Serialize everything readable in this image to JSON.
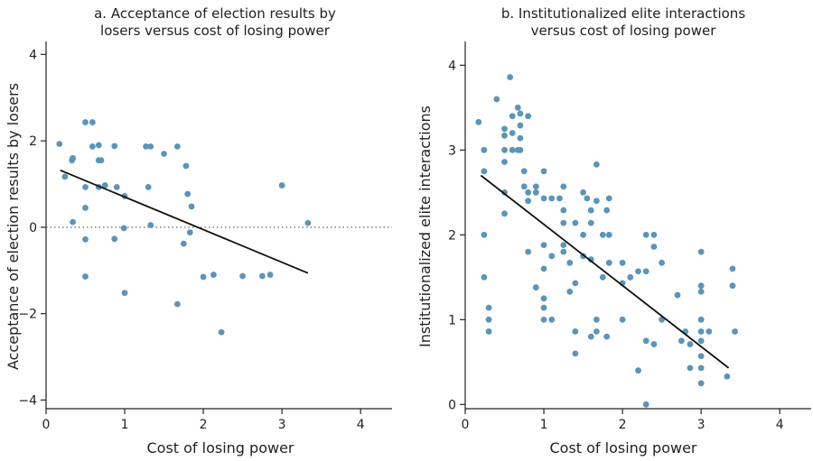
{
  "chart_data": [
    {
      "type": "scatter",
      "title_lines": [
        "a. Acceptance of election results by",
        "losers versus cost of losing power"
      ],
      "xlabel": "Cost of losing power",
      "ylabel": "Acceptance of election results by losers",
      "xlim": [
        0,
        4.4
      ],
      "ylim": [
        -4.2,
        4.3
      ],
      "xticks": [
        0,
        1,
        2,
        3,
        4
      ],
      "yticks": [
        -4,
        -2,
        0,
        2,
        4
      ],
      "ytick_labels": [
        "−4",
        "−2",
        "0",
        "2",
        "4"
      ],
      "reference_line": {
        "y": 0,
        "style": "dotted"
      },
      "fit_line": {
        "x": [
          0.18,
          3.33
        ],
        "y": [
          1.32,
          -1.06
        ]
      },
      "colors": {
        "points": "#5b95b8",
        "fit": "#111111"
      },
      "points": [
        [
          0.17,
          1.93
        ],
        [
          0.24,
          1.17
        ],
        [
          0.33,
          1.55
        ],
        [
          0.34,
          1.6
        ],
        [
          0.34,
          0.12
        ],
        [
          0.5,
          2.43
        ],
        [
          0.5,
          0.93
        ],
        [
          0.5,
          0.45
        ],
        [
          0.5,
          -0.28
        ],
        [
          0.5,
          -1.14
        ],
        [
          0.59,
          2.43
        ],
        [
          0.59,
          1.87
        ],
        [
          0.67,
          1.9
        ],
        [
          0.67,
          0.93
        ],
        [
          0.67,
          1.55
        ],
        [
          0.7,
          1.55
        ],
        [
          0.75,
          0.97
        ],
        [
          0.87,
          1.88
        ],
        [
          0.87,
          -0.27
        ],
        [
          0.9,
          0.93
        ],
        [
          0.99,
          -0.02
        ],
        [
          1.0,
          0.72
        ],
        [
          1.0,
          -1.52
        ],
        [
          1.27,
          1.87
        ],
        [
          1.3,
          0.93
        ],
        [
          1.33,
          1.87
        ],
        [
          1.33,
          0.05
        ],
        [
          1.5,
          1.7
        ],
        [
          1.67,
          1.87
        ],
        [
          1.67,
          -1.78
        ],
        [
          1.75,
          -0.38
        ],
        [
          1.78,
          1.42
        ],
        [
          1.8,
          0.77
        ],
        [
          1.83,
          -0.12
        ],
        [
          1.85,
          0.48
        ],
        [
          2.0,
          -1.15
        ],
        [
          2.13,
          -1.1
        ],
        [
          2.23,
          -2.43
        ],
        [
          2.5,
          -1.13
        ],
        [
          2.75,
          -1.13
        ],
        [
          2.85,
          -1.1
        ],
        [
          3.0,
          0.97
        ],
        [
          3.33,
          0.1
        ]
      ]
    },
    {
      "type": "scatter",
      "title_lines": [
        "b. Institutionalized elite interactions",
        "versus cost of losing power"
      ],
      "xlabel": "Cost of losing power",
      "ylabel": "Institutionalized elite interactions",
      "xlim": [
        0,
        4.4
      ],
      "ylim": [
        -0.05,
        4.28
      ],
      "xticks": [
        0,
        1,
        2,
        3,
        4
      ],
      "yticks": [
        0,
        1,
        2,
        3,
        4
      ],
      "ytick_labels": [
        "0",
        "1",
        "2",
        "3",
        "4"
      ],
      "fit_line": {
        "x": [
          0.2,
          3.35
        ],
        "y": [
          2.7,
          0.43
        ]
      },
      "colors": {
        "points": "#5b95b8",
        "fit": "#111111"
      },
      "points": [
        [
          0.17,
          3.33
        ],
        [
          0.24,
          3.0
        ],
        [
          0.24,
          2.75
        ],
        [
          0.24,
          2.0
        ],
        [
          0.24,
          1.5
        ],
        [
          0.3,
          1.14
        ],
        [
          0.3,
          1.0
        ],
        [
          0.3,
          0.86
        ],
        [
          0.4,
          3.6
        ],
        [
          0.5,
          3.25
        ],
        [
          0.5,
          3.17
        ],
        [
          0.5,
          3.0
        ],
        [
          0.5,
          2.86
        ],
        [
          0.5,
          2.5
        ],
        [
          0.5,
          2.25
        ],
        [
          0.57,
          3.86
        ],
        [
          0.6,
          3.4
        ],
        [
          0.6,
          3.2
        ],
        [
          0.6,
          3.0
        ],
        [
          0.67,
          3.5
        ],
        [
          0.67,
          3.0
        ],
        [
          0.7,
          3.43
        ],
        [
          0.7,
          3.29
        ],
        [
          0.7,
          3.14
        ],
        [
          0.7,
          3.0
        ],
        [
          0.75,
          2.57
        ],
        [
          0.75,
          2.75
        ],
        [
          0.8,
          2.5
        ],
        [
          0.8,
          3.4
        ],
        [
          0.8,
          2.4
        ],
        [
          0.8,
          1.8
        ],
        [
          0.9,
          2.5
        ],
        [
          0.9,
          2.57
        ],
        [
          0.9,
          1.38
        ],
        [
          1.0,
          2.75
        ],
        [
          1.0,
          2.43
        ],
        [
          1.0,
          1.88
        ],
        [
          1.0,
          1.6
        ],
        [
          1.0,
          1.25
        ],
        [
          1.0,
          1.14
        ],
        [
          1.0,
          1.0
        ],
        [
          1.1,
          2.43
        ],
        [
          1.1,
          1.75
        ],
        [
          1.1,
          1.0
        ],
        [
          1.2,
          2.43
        ],
        [
          1.25,
          2.57
        ],
        [
          1.25,
          2.14
        ],
        [
          1.25,
          2.29
        ],
        [
          1.25,
          1.88
        ],
        [
          1.25,
          1.8
        ],
        [
          1.33,
          1.67
        ],
        [
          1.33,
          1.33
        ],
        [
          1.4,
          2.14
        ],
        [
          1.4,
          1.43
        ],
        [
          1.4,
          0.86
        ],
        [
          1.4,
          0.6
        ],
        [
          1.5,
          2.5
        ],
        [
          1.5,
          2.0
        ],
        [
          1.5,
          1.75
        ],
        [
          1.55,
          2.43
        ],
        [
          1.6,
          2.29
        ],
        [
          1.6,
          2.14
        ],
        [
          1.6,
          1.71
        ],
        [
          1.6,
          0.8
        ],
        [
          1.67,
          2.83
        ],
        [
          1.67,
          2.4
        ],
        [
          1.67,
          1.0
        ],
        [
          1.67,
          0.86
        ],
        [
          1.75,
          2.0
        ],
        [
          1.75,
          1.5
        ],
        [
          1.8,
          2.29
        ],
        [
          1.8,
          0.8
        ],
        [
          1.83,
          2.43
        ],
        [
          1.83,
          2.0
        ],
        [
          1.83,
          1.67
        ],
        [
          2.0,
          1.67
        ],
        [
          2.0,
          1.43
        ],
        [
          2.0,
          1.0
        ],
        [
          2.1,
          1.5
        ],
        [
          2.2,
          1.57
        ],
        [
          2.2,
          0.4
        ],
        [
          2.3,
          2.0
        ],
        [
          2.3,
          1.57
        ],
        [
          2.3,
          0.75
        ],
        [
          2.3,
          0.0
        ],
        [
          2.4,
          2.0
        ],
        [
          2.4,
          1.86
        ],
        [
          2.4,
          0.71
        ],
        [
          2.5,
          1.67
        ],
        [
          2.5,
          1.0
        ],
        [
          2.7,
          1.29
        ],
        [
          2.75,
          0.75
        ],
        [
          2.8,
          0.86
        ],
        [
          2.86,
          0.71
        ],
        [
          2.86,
          0.43
        ],
        [
          3.0,
          1.8
        ],
        [
          3.0,
          1.4
        ],
        [
          3.0,
          1.33
        ],
        [
          3.0,
          1.0
        ],
        [
          3.0,
          0.86
        ],
        [
          3.0,
          0.75
        ],
        [
          3.0,
          0.57
        ],
        [
          3.0,
          0.43
        ],
        [
          3.0,
          0.25
        ],
        [
          3.1,
          0.86
        ],
        [
          3.33,
          0.33
        ],
        [
          3.4,
          1.6
        ],
        [
          3.4,
          1.4
        ],
        [
          3.43,
          0.86
        ]
      ]
    }
  ]
}
